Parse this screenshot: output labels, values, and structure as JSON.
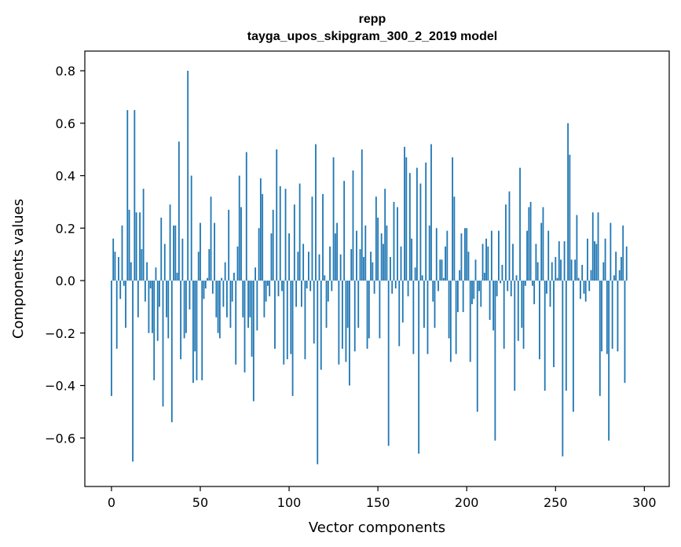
{
  "chart_data": {
    "type": "bar",
    "title_lines": [
      "repp",
      "tayga_upos_skipgram_300_2_2019 model"
    ],
    "xlabel": "Vector components",
    "ylabel": "Components values",
    "xlim": [
      -15,
      314
    ],
    "ylim": [
      -0.785,
      0.875
    ],
    "xticks": [
      0,
      50,
      100,
      150,
      200,
      250,
      300
    ],
    "yticks": [
      -0.6,
      -0.4,
      -0.2,
      0.0,
      0.2,
      0.4,
      0.6,
      0.8
    ],
    "ytick_labels": [
      "−0.6",
      "−0.4",
      "−0.2",
      "0.0",
      "0.2",
      "0.4",
      "0.6",
      "0.8"
    ],
    "grid": false,
    "bar_color": "#1f77b4",
    "values": [
      -0.44,
      0.16,
      0.11,
      -0.26,
      0.09,
      -0.07,
      0.21,
      -0.02,
      -0.18,
      0.65,
      0.27,
      0.07,
      -0.69,
      0.65,
      0.26,
      -0.14,
      0.26,
      0.12,
      0.35,
      -0.08,
      0.07,
      -0.2,
      -0.03,
      -0.2,
      -0.38,
      0.05,
      -0.23,
      -0.1,
      0.24,
      -0.48,
      0.14,
      -0.14,
      -0.22,
      0.29,
      -0.54,
      0.21,
      0.21,
      0.03,
      0.53,
      -0.3,
      0.16,
      -0.22,
      -0.2,
      0.8,
      -0.11,
      0.4,
      -0.39,
      -0.27,
      -0.38,
      0.11,
      0.22,
      -0.38,
      -0.07,
      -0.03,
      0.01,
      0.12,
      0.32,
      -0.05,
      0.22,
      -0.14,
      -0.2,
      -0.22,
      0.01,
      -0.1,
      0.07,
      -0.14,
      0.27,
      -0.18,
      -0.08,
      0.03,
      -0.32,
      0.13,
      0.4,
      0.28,
      -0.14,
      -0.35,
      0.49,
      -0.18,
      -0.14,
      -0.29,
      -0.46,
      0.05,
      -0.19,
      0.2,
      0.39,
      0.33,
      -0.14,
      -0.08,
      -0.02,
      -0.06,
      0.18,
      0.27,
      -0.26,
      0.5,
      -0.06,
      0.36,
      -0.04,
      -0.32,
      0.35,
      -0.3,
      0.18,
      -0.28,
      -0.44,
      0.29,
      -0.1,
      0.11,
      0.37,
      -0.1,
      0.14,
      -0.3,
      -0.03,
      0.11,
      -0.04,
      0.32,
      -0.24,
      0.52,
      -0.7,
      0.1,
      -0.34,
      0.33,
      0.02,
      -0.18,
      -0.08,
      0.13,
      -0.04,
      0.47,
      0.18,
      0.22,
      -0.32,
      0.1,
      -0.26,
      0.38,
      -0.31,
      -0.18,
      -0.4,
      0.12,
      0.42,
      -0.27,
      0.19,
      -0.18,
      0.12,
      0.5,
      0.09,
      0.21,
      -0.26,
      -0.22,
      0.11,
      0.07,
      -0.05,
      0.32,
      0.24,
      -0.22,
      0.18,
      0.14,
      0.35,
      0.21,
      -0.63,
      0.09,
      -0.05,
      0.3,
      -0.03,
      0.28,
      -0.25,
      0.13,
      -0.16,
      0.51,
      0.47,
      -0.06,
      0.41,
      0.16,
      -0.28,
      0.05,
      0.43,
      -0.66,
      0.37,
      0.02,
      -0.18,
      0.45,
      -0.28,
      0.21,
      0.52,
      -0.08,
      -0.18,
      0.2,
      -0.04,
      0.08,
      0.08,
      0.01,
      0.13,
      0.19,
      -0.22,
      -0.31,
      0.47,
      0.32,
      -0.28,
      -0.12,
      0.04,
      0.18,
      -0.12,
      0.2,
      0.2,
      0.11,
      -0.31,
      -0.09,
      -0.07,
      0.08,
      -0.5,
      -0.04,
      -0.1,
      0.14,
      0.03,
      0.16,
      0.13,
      -0.15,
      0.19,
      -0.19,
      -0.61,
      -0.06,
      0.19,
      -0.01,
      0.06,
      -0.26,
      0.29,
      -0.04,
      0.34,
      -0.06,
      0.14,
      -0.42,
      0.02,
      -0.23,
      0.43,
      -0.18,
      -0.26,
      -0.02,
      0.19,
      0.28,
      0.3,
      -0.02,
      -0.09,
      0.14,
      0.07,
      -0.3,
      0.22,
      0.28,
      -0.42,
      -0.05,
      0.19,
      -0.1,
      0.07,
      -0.33,
      0.09,
      0.01,
      0.15,
      0.08,
      -0.67,
      0.15,
      -0.42,
      0.6,
      0.48,
      0.08,
      -0.5,
      0.08,
      0.25,
      0.01,
      -0.07,
      0.06,
      -0.05,
      -0.08,
      0.16,
      -0.04,
      0.04,
      0.26,
      0.15,
      0.14,
      0.26,
      -0.44,
      -0.27,
      0.07,
      0.16,
      -0.28,
      -0.61,
      0.22,
      -0.26,
      0.02,
      0.11,
      -0.27,
      0.04,
      0.09,
      0.21,
      -0.39,
      0.13
    ]
  }
}
